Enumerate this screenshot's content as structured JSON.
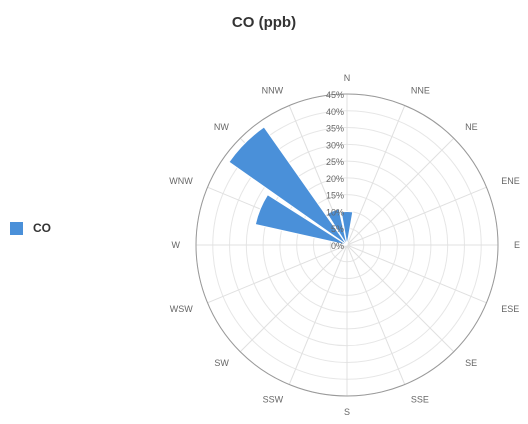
{
  "chart_data": {
    "type": "polar-bar",
    "title": "CO (ppb)",
    "directions": [
      "N",
      "NNE",
      "NE",
      "ENE",
      "E",
      "ESE",
      "SE",
      "SSE",
      "S",
      "SSW",
      "SW",
      "WSW",
      "W",
      "WNW",
      "NW",
      "NNW"
    ],
    "radial_ticks": [
      "0%",
      "5%",
      "10%",
      "15%",
      "20%",
      "25%",
      "30%",
      "35%",
      "40%",
      "45%"
    ],
    "radial_max": 45,
    "series": [
      {
        "name": "CO",
        "color": "#4a90d9",
        "values": [
          10,
          0,
          0,
          0,
          0,
          0,
          0,
          0,
          0,
          0,
          0,
          0,
          1,
          28,
          43,
          11
        ]
      }
    ],
    "legend_position": "left",
    "grid": true
  }
}
